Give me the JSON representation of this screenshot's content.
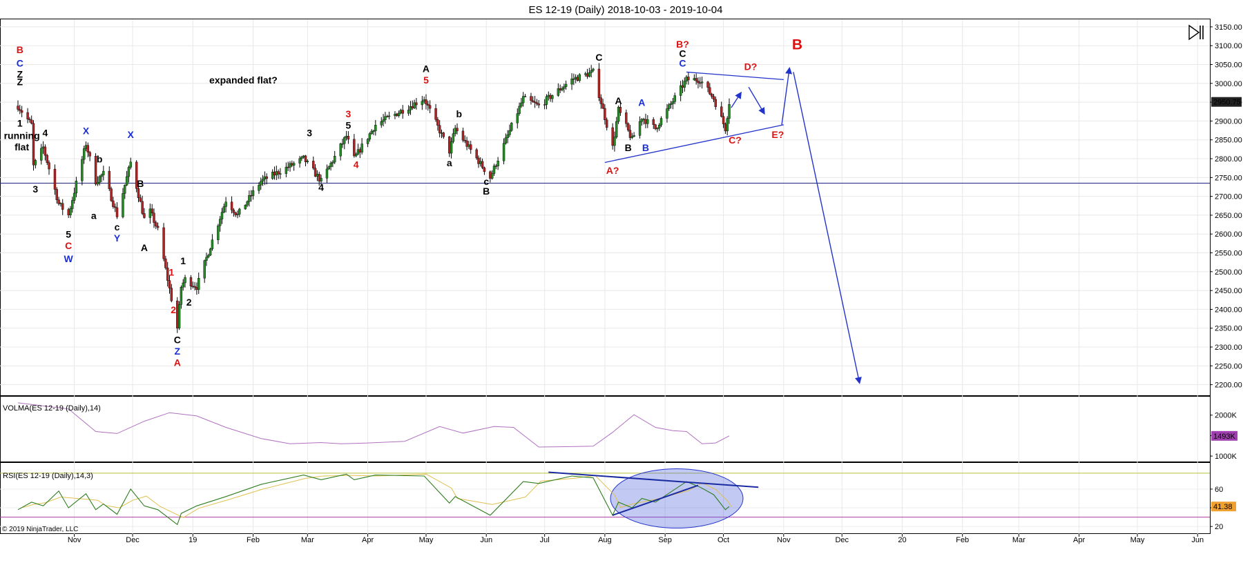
{
  "title": "ES 12-19 (Daily)  2018-10-03 - 2019-10-04",
  "copyright": "© 2019 NinjaTrader, LLC",
  "colors": {
    "up": "#228b22",
    "down": "#b22222",
    "red_label": "#dd1111",
    "blue_label": "#1a2fd6",
    "black_label": "#000000",
    "trendline": "#2233cc",
    "volma": "#b070c0",
    "rsi": "#2e7d1e",
    "rsi_signal": "#e0c050",
    "volma_badge": "#a040b0",
    "price_badge": "#222222",
    "rsi_badge": "#f0a030"
  },
  "x_axis": {
    "ticks": [
      {
        "date": "2018-11-01",
        "label": "Nov"
      },
      {
        "date": "2018-12-01",
        "label": "Dec"
      },
      {
        "date": "2019-01-01",
        "label": "19"
      },
      {
        "date": "2019-02-01",
        "label": "Feb"
      },
      {
        "date": "2019-03-01",
        "label": "Mar"
      },
      {
        "date": "2019-04-01",
        "label": "Apr"
      },
      {
        "date": "2019-05-01",
        "label": "May"
      },
      {
        "date": "2019-06-01",
        "label": "Jun"
      },
      {
        "date": "2019-07-01",
        "label": "Jul"
      },
      {
        "date": "2019-08-01",
        "label": "Aug"
      },
      {
        "date": "2019-09-01",
        "label": "Sep"
      },
      {
        "date": "2019-10-01",
        "label": "Oct"
      },
      {
        "date": "2019-11-01",
        "label": "Nov"
      },
      {
        "date": "2019-12-01",
        "label": "Dec"
      },
      {
        "date": "2020-01-01",
        "label": "20"
      },
      {
        "date": "2020-02-01",
        "label": "Feb"
      },
      {
        "date": "2020-03-01",
        "label": "Mar"
      },
      {
        "date": "2020-04-01",
        "label": "Apr"
      },
      {
        "date": "2020-05-01",
        "label": "May"
      },
      {
        "date": "2020-06-01",
        "label": "Jun"
      }
    ]
  },
  "chart_data": [
    {
      "type": "candlestick",
      "name": "price",
      "ylim": [
        2170,
        3170
      ],
      "y_ticks": [
        "2200.00",
        "2250.00",
        "2300.00",
        "2350.00",
        "2400.00",
        "2450.00",
        "2500.00",
        "2550.00",
        "2600.00",
        "2650.00",
        "2700.00",
        "2750.00",
        "2800.00",
        "2850.00",
        "2900.00",
        "2950.00",
        "3000.00",
        "3050.00",
        "3100.00",
        "3150.00"
      ],
      "last_price_label": "2950.75",
      "last_price": 2950.75,
      "horizontal_line": 2735,
      "path_points": [
        [
          "2018-10-03",
          2940
        ],
        [
          "2018-10-10",
          2890
        ],
        [
          "2018-10-11",
          2780
        ],
        [
          "2018-10-16",
          2830
        ],
        [
          "2018-10-24",
          2680
        ],
        [
          "2018-10-29",
          2650
        ],
        [
          "2018-11-07",
          2840
        ],
        [
          "2018-11-12",
          2740
        ],
        [
          "2018-11-16",
          2760
        ],
        [
          "2018-11-23",
          2650
        ],
        [
          "2018-11-30",
          2790
        ],
        [
          "2018-12-07",
          2640
        ],
        [
          "2018-12-10",
          2660
        ],
        [
          "2018-12-14",
          2610
        ],
        [
          "2018-12-24",
          2350
        ],
        [
          "2018-12-26",
          2460
        ],
        [
          "2018-12-28",
          2480
        ],
        [
          "2019-01-03",
          2460
        ],
        [
          "2019-01-18",
          2690
        ],
        [
          "2019-01-24",
          2650
        ],
        [
          "2019-02-05",
          2740
        ],
        [
          "2019-02-27",
          2800
        ],
        [
          "2019-03-08",
          2740
        ],
        [
          "2019-03-21",
          2860
        ],
        [
          "2019-03-25",
          2800
        ],
        [
          "2019-04-05",
          2890
        ],
        [
          "2019-04-30",
          2960
        ],
        [
          "2019-05-13",
          2820
        ],
        [
          "2019-05-16",
          2880
        ],
        [
          "2019-06-03",
          2750
        ],
        [
          "2019-06-20",
          2960
        ],
        [
          "2019-06-28",
          2940
        ],
        [
          "2019-07-15",
          3010
        ],
        [
          "2019-07-26",
          3030
        ],
        [
          "2019-08-05",
          2830
        ],
        [
          "2019-08-08",
          2930
        ],
        [
          "2019-08-15",
          2850
        ],
        [
          "2019-08-20",
          2910
        ],
        [
          "2019-08-27",
          2880
        ],
        [
          "2019-09-12",
          3010
        ],
        [
          "2019-09-19",
          3010
        ],
        [
          "2019-09-26",
          2960
        ],
        [
          "2019-10-02",
          2880
        ],
        [
          "2019-10-04",
          2950
        ]
      ]
    },
    {
      "type": "line",
      "name": "VOLMA(ES 12-19 (Daily),14)",
      "ylim": [
        850000,
        2450000
      ],
      "y_ticks": [
        "1000K",
        "1500K",
        "2000K"
      ],
      "last_value_label": "1493K",
      "last_value": 1493000,
      "points": [
        [
          "2018-10-03",
          2300000
        ],
        [
          "2018-10-29",
          2150000
        ],
        [
          "2018-11-12",
          1600000
        ],
        [
          "2018-11-23",
          1550000
        ],
        [
          "2018-12-07",
          1850000
        ],
        [
          "2018-12-20",
          2060000
        ],
        [
          "2019-01-03",
          1980000
        ],
        [
          "2019-01-18",
          1700000
        ],
        [
          "2019-02-05",
          1430000
        ],
        [
          "2019-02-20",
          1300000
        ],
        [
          "2019-03-08",
          1330000
        ],
        [
          "2019-03-18",
          1300000
        ],
        [
          "2019-04-01",
          1320000
        ],
        [
          "2019-04-20",
          1360000
        ],
        [
          "2019-05-08",
          1720000
        ],
        [
          "2019-05-20",
          1560000
        ],
        [
          "2019-06-05",
          1720000
        ],
        [
          "2019-06-15",
          1700000
        ],
        [
          "2019-06-28",
          1220000
        ],
        [
          "2019-07-15",
          1230000
        ],
        [
          "2019-07-26",
          1240000
        ],
        [
          "2019-08-05",
          1580000
        ],
        [
          "2019-08-16",
          2010000
        ],
        [
          "2019-08-27",
          1700000
        ],
        [
          "2019-09-05",
          1620000
        ],
        [
          "2019-09-12",
          1600000
        ],
        [
          "2019-09-20",
          1300000
        ],
        [
          "2019-09-27",
          1320000
        ],
        [
          "2019-10-04",
          1493000
        ]
      ]
    },
    {
      "type": "line",
      "name": "RSI(ES 12-19 (Daily),14,3)",
      "ylim": [
        12,
        88
      ],
      "y_ticks": [
        "20",
        "40",
        "60"
      ],
      "levels": [
        77,
        30
      ],
      "last_value_label": "41.38",
      "last_value": 41.38,
      "points": [
        [
          "2018-10-03",
          38
        ],
        [
          "2018-10-10",
          46
        ],
        [
          "2018-10-16",
          42
        ],
        [
          "2018-10-24",
          58
        ],
        [
          "2018-10-29",
          40
        ],
        [
          "2018-11-07",
          55
        ],
        [
          "2018-11-12",
          38
        ],
        [
          "2018-11-16",
          44
        ],
        [
          "2018-11-23",
          33
        ],
        [
          "2018-11-30",
          60
        ],
        [
          "2018-12-07",
          42
        ],
        [
          "2018-12-14",
          38
        ],
        [
          "2018-12-24",
          22
        ],
        [
          "2018-12-26",
          34
        ],
        [
          "2019-01-03",
          42
        ],
        [
          "2019-01-18",
          52
        ],
        [
          "2019-02-05",
          65
        ],
        [
          "2019-02-27",
          75
        ],
        [
          "2019-03-08",
          70
        ],
        [
          "2019-03-21",
          76
        ],
        [
          "2019-03-25",
          70
        ],
        [
          "2019-04-05",
          75
        ],
        [
          "2019-04-30",
          74
        ],
        [
          "2019-05-13",
          45
        ],
        [
          "2019-05-16",
          52
        ],
        [
          "2019-06-03",
          32
        ],
        [
          "2019-06-20",
          68
        ],
        [
          "2019-06-28",
          66
        ],
        [
          "2019-07-15",
          74
        ],
        [
          "2019-07-26",
          72
        ],
        [
          "2019-08-05",
          32
        ],
        [
          "2019-08-08",
          46
        ],
        [
          "2019-08-15",
          40
        ],
        [
          "2019-08-20",
          50
        ],
        [
          "2019-08-27",
          46
        ],
        [
          "2019-09-12",
          68
        ],
        [
          "2019-09-19",
          62
        ],
        [
          "2019-09-26",
          54
        ],
        [
          "2019-10-02",
          38
        ],
        [
          "2019-10-04",
          41.38
        ]
      ]
    }
  ],
  "annotations": [
    {
      "text": "B",
      "color": "red",
      "date": "2018-10-04",
      "price": 3080,
      "size": 14
    },
    {
      "text": "C",
      "color": "blue",
      "date": "2018-10-04",
      "price": 3045,
      "size": 14
    },
    {
      "text": "Z",
      "color": "black",
      "date": "2018-10-04",
      "price": 3015,
      "size": 14
    },
    {
      "text": "Z",
      "color": "black",
      "date": "2018-10-04",
      "price": 2995,
      "size": 14
    },
    {
      "text": "1",
      "color": "black",
      "date": "2018-10-04",
      "price": 2885,
      "size": 14
    },
    {
      "text": "running",
      "color": "black",
      "date": "2018-10-05",
      "price": 2852,
      "size": 14
    },
    {
      "text": "flat",
      "color": "black",
      "date": "2018-10-05",
      "price": 2822,
      "size": 14
    },
    {
      "text": "4",
      "color": "black",
      "date": "2018-10-17",
      "price": 2860,
      "size": 14
    },
    {
      "text": "3",
      "color": "black",
      "date": "2018-10-12",
      "price": 2710,
      "size": 14
    },
    {
      "text": "X",
      "color": "blue",
      "date": "2018-11-07",
      "price": 2865,
      "size": 14
    },
    {
      "text": "b",
      "color": "black",
      "date": "2018-11-14",
      "price": 2790,
      "size": 14
    },
    {
      "text": "X",
      "color": "blue",
      "date": "2018-11-30",
      "price": 2855,
      "size": 14
    },
    {
      "text": "B",
      "color": "black",
      "date": "2018-12-05",
      "price": 2725,
      "size": 14
    },
    {
      "text": "a",
      "color": "black",
      "date": "2018-11-11",
      "price": 2640,
      "size": 14
    },
    {
      "text": "c",
      "color": "black",
      "date": "2018-11-23",
      "price": 2610,
      "size": 14
    },
    {
      "text": "Y",
      "color": "blue",
      "date": "2018-11-23",
      "price": 2580,
      "size": 14
    },
    {
      "text": "5",
      "color": "black",
      "date": "2018-10-29",
      "price": 2590,
      "size": 14
    },
    {
      "text": "C",
      "color": "red",
      "date": "2018-10-29",
      "price": 2560,
      "size": 14
    },
    {
      "text": "W",
      "color": "blue",
      "date": "2018-10-29",
      "price": 2525,
      "size": 14
    },
    {
      "text": "A",
      "color": "black",
      "date": "2018-12-07",
      "price": 2555,
      "size": 14
    },
    {
      "text": "1",
      "color": "red",
      "date": "2018-12-21",
      "price": 2490,
      "size": 14
    },
    {
      "text": "1",
      "color": "black",
      "date": "2018-12-27",
      "price": 2520,
      "size": 14
    },
    {
      "text": "2",
      "color": "red",
      "date": "2018-12-22",
      "price": 2390,
      "size": 14
    },
    {
      "text": "2",
      "color": "black",
      "date": "2018-12-30",
      "price": 2410,
      "size": 14
    },
    {
      "text": "C",
      "color": "black",
      "date": "2018-12-24",
      "price": 2310,
      "size": 14
    },
    {
      "text": "Z",
      "color": "blue",
      "date": "2018-12-24",
      "price": 2280,
      "size": 14
    },
    {
      "text": "A",
      "color": "red",
      "date": "2018-12-24",
      "price": 2250,
      "size": 14
    },
    {
      "text": "expanded flat?",
      "color": "black",
      "date": "2019-01-27",
      "price": 3000,
      "size": 14
    },
    {
      "text": "3",
      "color": "black",
      "date": "2019-03-02",
      "price": 2860,
      "size": 14
    },
    {
      "text": "4",
      "color": "black",
      "date": "2019-03-08",
      "price": 2715,
      "size": 14
    },
    {
      "text": "3",
      "color": "red",
      "date": "2019-03-22",
      "price": 2910,
      "size": 14
    },
    {
      "text": "5",
      "color": "black",
      "date": "2019-03-22",
      "price": 2880,
      "size": 14
    },
    {
      "text": "4",
      "color": "red",
      "date": "2019-03-26",
      "price": 2775,
      "size": 14
    },
    {
      "text": "A",
      "color": "black",
      "date": "2019-05-01",
      "price": 3030,
      "size": 14
    },
    {
      "text": "5",
      "color": "red",
      "date": "2019-05-01",
      "price": 3000,
      "size": 14
    },
    {
      "text": "b",
      "color": "black",
      "date": "2019-05-18",
      "price": 2910,
      "size": 14
    },
    {
      "text": "a",
      "color": "black",
      "date": "2019-05-13",
      "price": 2780,
      "size": 14
    },
    {
      "text": "c",
      "color": "black",
      "date": "2019-06-01",
      "price": 2730,
      "size": 14
    },
    {
      "text": "B",
      "color": "black",
      "date": "2019-06-01",
      "price": 2705,
      "size": 14
    },
    {
      "text": "C",
      "color": "black",
      "date": "2019-07-29",
      "price": 3060,
      "size": 14
    },
    {
      "text": "A",
      "color": "black",
      "date": "2019-08-08",
      "price": 2945,
      "size": 14
    },
    {
      "text": "B",
      "color": "black",
      "date": "2019-08-13",
      "price": 2820,
      "size": 14
    },
    {
      "text": "A",
      "color": "blue",
      "date": "2019-08-20",
      "price": 2940,
      "size": 14
    },
    {
      "text": "B",
      "color": "blue",
      "date": "2019-08-22",
      "price": 2820,
      "size": 14
    },
    {
      "text": "A?",
      "color": "red",
      "date": "2019-08-05",
      "price": 2760,
      "size": 14
    },
    {
      "text": "B?",
      "color": "red",
      "date": "2019-09-10",
      "price": 3095,
      "size": 14
    },
    {
      "text": "C",
      "color": "black",
      "date": "2019-09-10",
      "price": 3070,
      "size": 14
    },
    {
      "text": "C",
      "color": "blue",
      "date": "2019-09-10",
      "price": 3045,
      "size": 14
    },
    {
      "text": "D?",
      "color": "red",
      "date": "2019-10-15",
      "price": 3035,
      "size": 14
    },
    {
      "text": "B",
      "color": "red",
      "date": "2019-11-08",
      "price": 3090,
      "size": 21
    },
    {
      "text": "C?",
      "color": "red",
      "date": "2019-10-07",
      "price": 2840,
      "size": 14
    },
    {
      "text": "E?",
      "color": "red",
      "date": "2019-10-29",
      "price": 2855,
      "size": 14
    }
  ]
}
